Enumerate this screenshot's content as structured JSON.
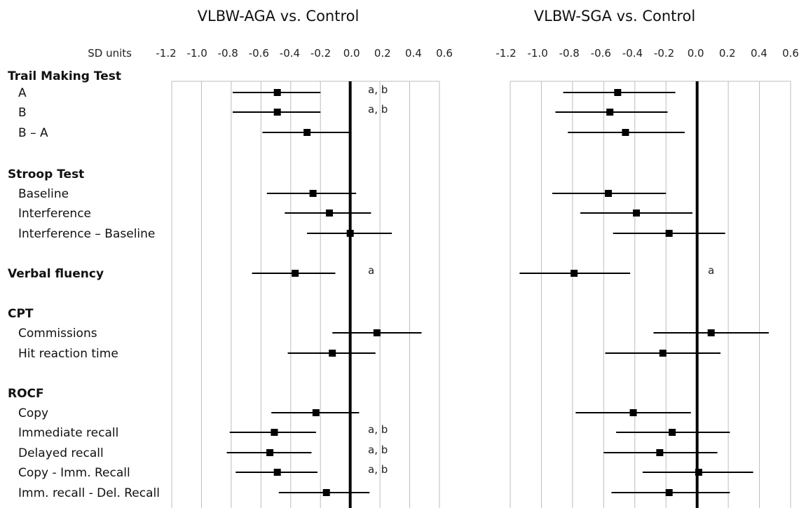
{
  "chart_data": {
    "type": "forest",
    "axis_label": "SD units",
    "xlim": [
      -1.2,
      0.6
    ],
    "ticks": [
      "-1.2",
      "-1.0",
      "-0.8",
      "-0.6",
      "-0.4",
      "-0.2",
      "0.0",
      "0.2",
      "0.4",
      "0.6"
    ],
    "grid": true,
    "rows": [
      {
        "label": "Trail Making Test",
        "group": true
      },
      {
        "label": "A"
      },
      {
        "label": "B"
      },
      {
        "label": "B – A"
      },
      {
        "label": "",
        "spacer": true
      },
      {
        "label": "Stroop Test",
        "group": true
      },
      {
        "label": "Baseline"
      },
      {
        "label": "Interference"
      },
      {
        "label": "Interference  – Baseline"
      },
      {
        "label": "",
        "spacer": true
      },
      {
        "label": "Verbal fluency",
        "group": true,
        "has_data": true
      },
      {
        "label": "",
        "spacer": true
      },
      {
        "label": "CPT",
        "group": true
      },
      {
        "label": "Commissions"
      },
      {
        "label": "Hit reaction time"
      },
      {
        "label": "",
        "spacer": true
      },
      {
        "label": "ROCF",
        "group": true
      },
      {
        "label": "Copy"
      },
      {
        "label": "Immediate recall"
      },
      {
        "label": "Delayed recall"
      },
      {
        "label": "Copy - Imm. Recall"
      },
      {
        "label": "Imm. recall - Del. Recall"
      }
    ],
    "panels": [
      {
        "title": "VLBW-AGA vs. Control",
        "estimates": [
          {
            "row": 1,
            "est": -0.49,
            "lo": -0.79,
            "hi": -0.2,
            "note": "a, b"
          },
          {
            "row": 2,
            "est": -0.49,
            "lo": -0.79,
            "hi": -0.2,
            "note": "a, b"
          },
          {
            "row": 3,
            "est": -0.29,
            "lo": -0.59,
            "hi": 0.0,
            "note": ""
          },
          {
            "row": 6,
            "est": -0.25,
            "lo": -0.56,
            "hi": 0.04,
            "note": ""
          },
          {
            "row": 7,
            "est": -0.14,
            "lo": -0.44,
            "hi": 0.14,
            "note": ""
          },
          {
            "row": 8,
            "est": 0.0,
            "lo": -0.29,
            "hi": 0.28,
            "note": ""
          },
          {
            "row": 10,
            "est": -0.37,
            "lo": -0.66,
            "hi": -0.1,
            "note": "a"
          },
          {
            "row": 13,
            "est": 0.18,
            "lo": -0.12,
            "hi": 0.48,
            "note": ""
          },
          {
            "row": 14,
            "est": -0.12,
            "lo": -0.42,
            "hi": 0.17,
            "note": ""
          },
          {
            "row": 17,
            "est": -0.23,
            "lo": -0.53,
            "hi": 0.06,
            "note": ""
          },
          {
            "row": 18,
            "est": -0.51,
            "lo": -0.81,
            "hi": -0.23,
            "note": "a, b"
          },
          {
            "row": 19,
            "est": -0.54,
            "lo": -0.83,
            "hi": -0.26,
            "note": "a, b"
          },
          {
            "row": 20,
            "est": -0.49,
            "lo": -0.77,
            "hi": -0.22,
            "note": "a, b"
          },
          {
            "row": 21,
            "est": -0.16,
            "lo": -0.48,
            "hi": 0.13,
            "note": ""
          }
        ]
      },
      {
        "title": "VLBW-SGA vs. Control",
        "estimates": [
          {
            "row": 1,
            "est": -0.51,
            "lo": -0.86,
            "hi": -0.14,
            "note": ""
          },
          {
            "row": 2,
            "est": -0.56,
            "lo": -0.91,
            "hi": -0.19,
            "note": ""
          },
          {
            "row": 3,
            "est": -0.46,
            "lo": -0.83,
            "hi": -0.08,
            "note": ""
          },
          {
            "row": 6,
            "est": -0.57,
            "lo": -0.93,
            "hi": -0.2,
            "note": ""
          },
          {
            "row": 7,
            "est": -0.39,
            "lo": -0.75,
            "hi": -0.03,
            "note": ""
          },
          {
            "row": 8,
            "est": -0.18,
            "lo": -0.54,
            "hi": 0.18,
            "note": ""
          },
          {
            "row": 10,
            "est": -0.79,
            "lo": -1.14,
            "hi": -0.43,
            "note": "a"
          },
          {
            "row": 13,
            "est": 0.09,
            "lo": -0.28,
            "hi": 0.46,
            "note": ""
          },
          {
            "row": 14,
            "est": -0.22,
            "lo": -0.59,
            "hi": 0.15,
            "note": ""
          },
          {
            "row": 17,
            "est": -0.41,
            "lo": -0.78,
            "hi": -0.04,
            "note": ""
          },
          {
            "row": 18,
            "est": -0.16,
            "lo": -0.52,
            "hi": 0.21,
            "note": ""
          },
          {
            "row": 19,
            "est": -0.24,
            "lo": -0.6,
            "hi": 0.13,
            "note": ""
          },
          {
            "row": 20,
            "est": 0.01,
            "lo": -0.35,
            "hi": 0.36,
            "note": ""
          },
          {
            "row": 21,
            "est": -0.18,
            "lo": -0.55,
            "hi": 0.21,
            "note": ""
          }
        ]
      }
    ]
  }
}
